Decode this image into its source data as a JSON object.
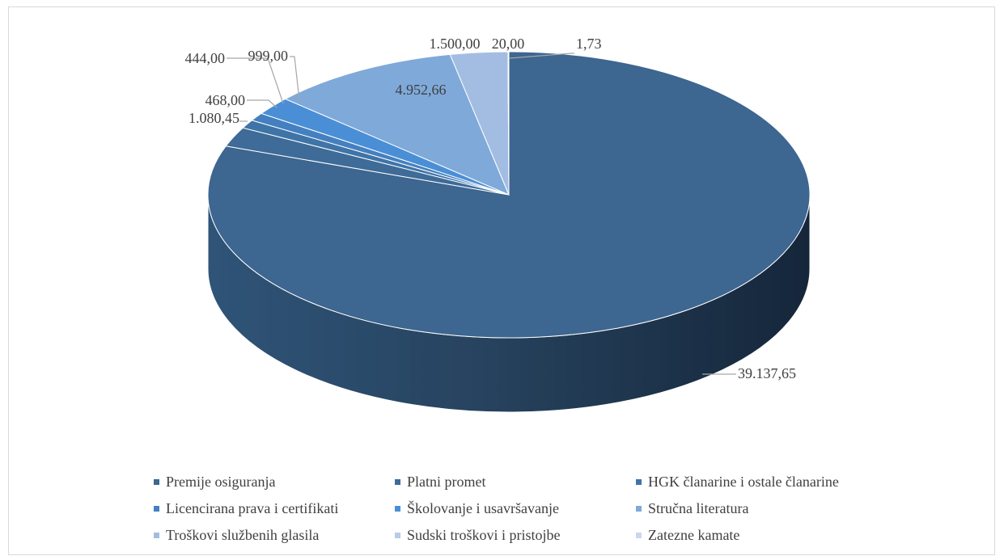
{
  "chart_data": {
    "type": "pie",
    "title": "",
    "legend_position": "bottom",
    "slices": [
      {
        "name": "Premije osiguranja",
        "value": 39137.65,
        "label": "39.137,65",
        "color": "#3d6690"
      },
      {
        "name": "Platni promet",
        "value": 1080.45,
        "label": "1.080,45",
        "color": "#3e6b97"
      },
      {
        "name": "HGK članarine i ostale članarine",
        "value": 468.0,
        "label": "468,00",
        "color": "#3f74a7"
      },
      {
        "name": "Licencirana prava i certifikati",
        "value": 444.0,
        "label": "444,00",
        "color": "#4480c0"
      },
      {
        "name": "Školovanje i usavršavanje",
        "value": 999.0,
        "label": "999,00",
        "color": "#4a8fd6"
      },
      {
        "name": "Stručna literatura",
        "value": 4952.66,
        "label": "4.952,66",
        "color": "#7fa9d9"
      },
      {
        "name": "Troškovi službenih glasila",
        "value": 1500.0,
        "label": "1.500,00",
        "color": "#a3bde2"
      },
      {
        "name": "Sudski troškovi i pristojbe",
        "value": 20.0,
        "label": "20,00",
        "color": "#b8cbe8"
      },
      {
        "name": "Zatezne kamate",
        "value": 1.73,
        "label": "1,73",
        "color": "#cad8ee"
      }
    ]
  }
}
